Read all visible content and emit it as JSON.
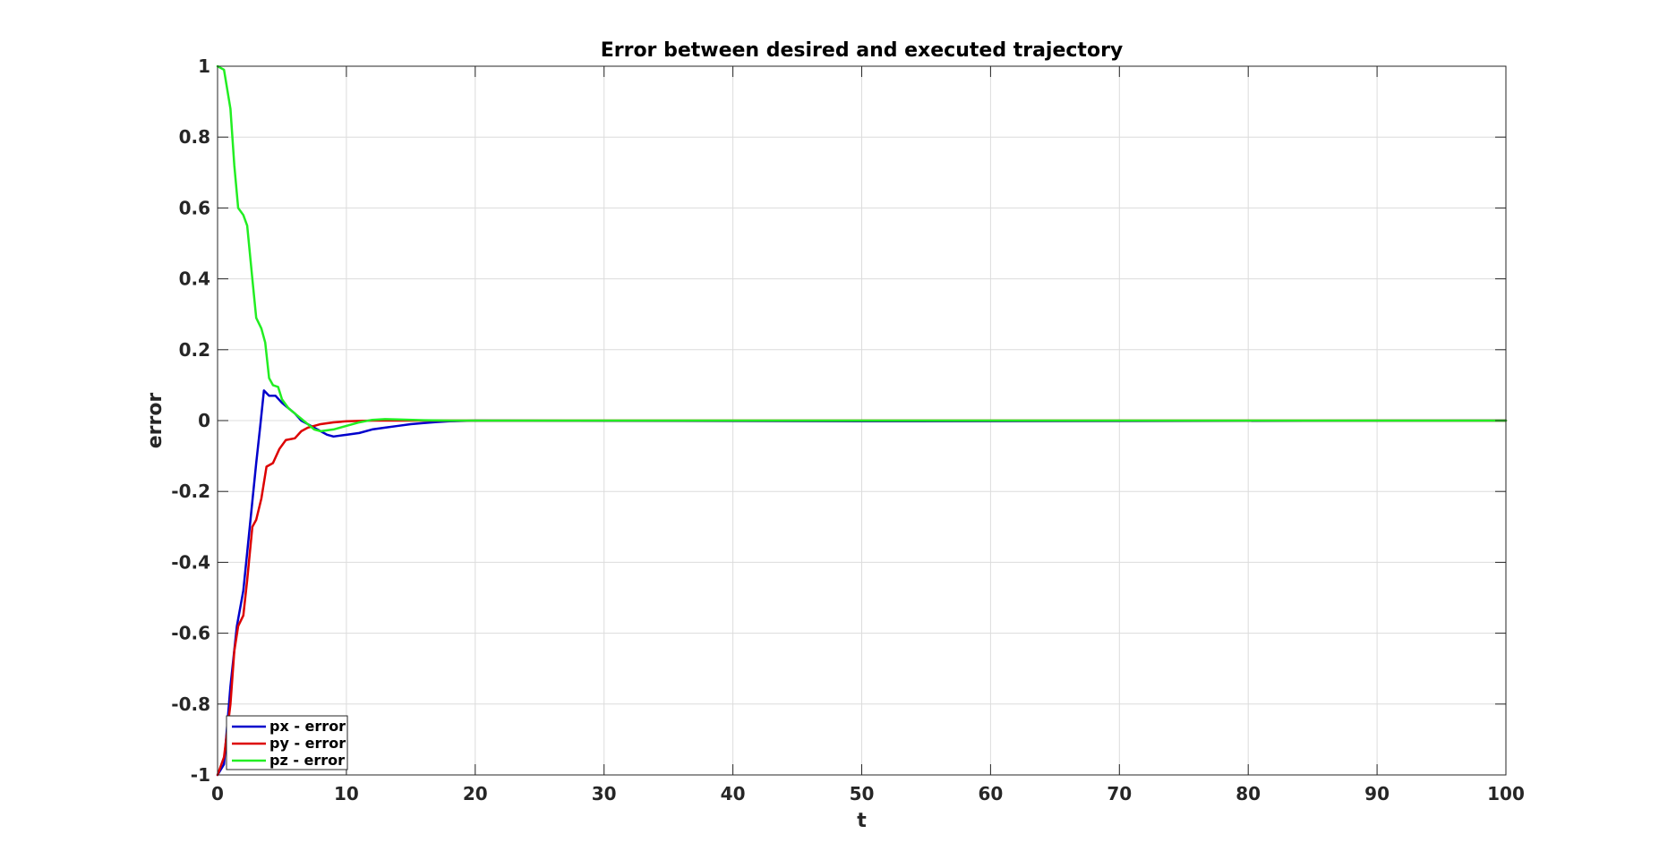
{
  "chart_data": {
    "type": "line",
    "title": "Error between desired and executed trajectory",
    "xlabel": "t",
    "ylabel": "error",
    "xlim": [
      0,
      100
    ],
    "ylim": [
      -1,
      1
    ],
    "xticks": [
      "0",
      "10",
      "20",
      "30",
      "40",
      "50",
      "60",
      "70",
      "80",
      "90",
      "100"
    ],
    "yticks": [
      "-1",
      "-0.8",
      "-0.6",
      "-0.4",
      "-0.2",
      "0",
      "0.2",
      "0.4",
      "0.6",
      "0.8",
      "1"
    ],
    "grid": true,
    "legend_position": "bottom-left",
    "series": [
      {
        "name": "px - error",
        "color": "#0000cc",
        "points": [
          [
            0,
            -1
          ],
          [
            0.5,
            -0.97
          ],
          [
            1,
            -0.75
          ],
          [
            1.5,
            -0.58
          ],
          [
            2,
            -0.48
          ],
          [
            2.5,
            -0.3
          ],
          [
            3,
            -0.12
          ],
          [
            3.3,
            -0.02
          ],
          [
            3.6,
            0.085
          ],
          [
            4,
            0.07
          ],
          [
            4.5,
            0.07
          ],
          [
            5,
            0.05
          ],
          [
            5.5,
            0.035
          ],
          [
            6,
            0.02
          ],
          [
            6.5,
            0.0
          ],
          [
            7,
            -0.01
          ],
          [
            7.5,
            -0.02
          ],
          [
            8,
            -0.03
          ],
          [
            8.5,
            -0.04
          ],
          [
            9,
            -0.045
          ],
          [
            10,
            -0.04
          ],
          [
            11,
            -0.035
          ],
          [
            12,
            -0.025
          ],
          [
            13,
            -0.02
          ],
          [
            14,
            -0.015
          ],
          [
            15,
            -0.01
          ],
          [
            16,
            -0.007
          ],
          [
            17,
            -0.004
          ],
          [
            18,
            -0.002
          ],
          [
            20,
            0
          ],
          [
            50,
            -0.002
          ],
          [
            100,
            0
          ]
        ]
      },
      {
        "name": "py - error",
        "color": "#dd0000",
        "points": [
          [
            0,
            -1
          ],
          [
            0.5,
            -0.95
          ],
          [
            1,
            -0.8
          ],
          [
            1.3,
            -0.65
          ],
          [
            1.6,
            -0.58
          ],
          [
            2,
            -0.55
          ],
          [
            2.3,
            -0.45
          ],
          [
            2.7,
            -0.3
          ],
          [
            3,
            -0.28
          ],
          [
            3.4,
            -0.22
          ],
          [
            3.8,
            -0.13
          ],
          [
            4.3,
            -0.12
          ],
          [
            4.8,
            -0.08
          ],
          [
            5.3,
            -0.055
          ],
          [
            6,
            -0.05
          ],
          [
            6.5,
            -0.03
          ],
          [
            7,
            -0.02
          ],
          [
            8,
            -0.01
          ],
          [
            9,
            -0.005
          ],
          [
            10,
            -0.002
          ],
          [
            12,
            0
          ],
          [
            100,
            0
          ]
        ]
      },
      {
        "name": "pz - error",
        "color": "#22ee22",
        "points": [
          [
            0,
            1
          ],
          [
            0.5,
            0.99
          ],
          [
            1,
            0.88
          ],
          [
            1.3,
            0.72
          ],
          [
            1.6,
            0.6
          ],
          [
            2,
            0.58
          ],
          [
            2.3,
            0.55
          ],
          [
            2.7,
            0.4
          ],
          [
            3,
            0.29
          ],
          [
            3.4,
            0.26
          ],
          [
            3.7,
            0.22
          ],
          [
            4,
            0.12
          ],
          [
            4.3,
            0.1
          ],
          [
            4.7,
            0.095
          ],
          [
            5,
            0.06
          ],
          [
            5.5,
            0.035
          ],
          [
            6,
            0.02
          ],
          [
            6.5,
            0.005
          ],
          [
            7,
            -0.01
          ],
          [
            7.5,
            -0.025
          ],
          [
            8,
            -0.03
          ],
          [
            9,
            -0.025
          ],
          [
            10,
            -0.015
          ],
          [
            11,
            -0.005
          ],
          [
            12,
            0.002
          ],
          [
            13,
            0.004
          ],
          [
            14,
            0.003
          ],
          [
            16,
            0.001
          ],
          [
            18,
            0
          ],
          [
            100,
            0
          ]
        ]
      }
    ]
  }
}
